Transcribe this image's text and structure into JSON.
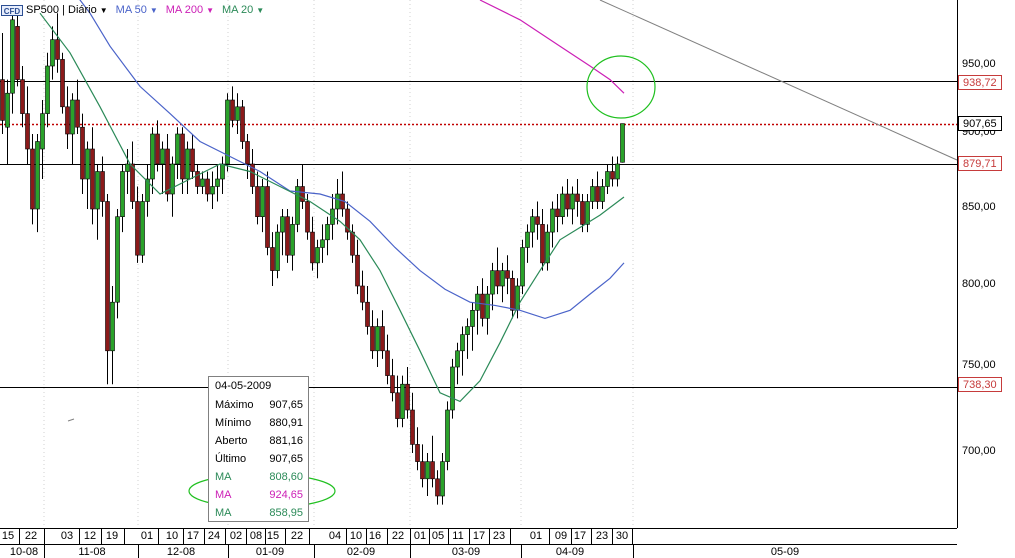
{
  "toolbar": {
    "badge": "CFD",
    "symbol": "SP500 | Diário",
    "indicators": [
      {
        "label": "MA 50",
        "color": "#4a63c9"
      },
      {
        "label": "MA 200",
        "color": "#cc1fb6"
      },
      {
        "label": "MA 20",
        "color": "#2b8a58"
      }
    ]
  },
  "tooltip": {
    "date": "04-05-2009",
    "rows": [
      {
        "k": "Máximo",
        "v": "907,65",
        "color": "#000000"
      },
      {
        "k": "Mínimo",
        "v": "880,91",
        "color": "#000000"
      },
      {
        "k": "Aberto",
        "v": "881,16",
        "color": "#000000"
      },
      {
        "k": "Último",
        "v": "907,65",
        "color": "#000000"
      },
      {
        "k": "MA",
        "v": "808,60",
        "color": "#2b8a58"
      },
      {
        "k": "MA",
        "v": "924,65",
        "color": "#cc1fb6"
      },
      {
        "k": "MA",
        "v": "858,95",
        "color": "#2b8a58"
      }
    ]
  },
  "chart_data": {
    "type": "candlestick",
    "x_months": [
      "10-08",
      "11-08",
      "12-08",
      "01-09",
      "02-09",
      "03-09",
      "04-09",
      "05-09"
    ],
    "x_day_ticks": [
      "15",
      "22",
      "03",
      "12",
      "19",
      "01",
      "10",
      "17",
      "24",
      "02",
      "08",
      "15",
      "22",
      "04",
      "10",
      "16",
      "22",
      "01",
      "05",
      "11",
      "17",
      "23",
      "01",
      "09",
      "17",
      "23",
      "30"
    ],
    "y_ticks": [
      "950,00",
      "900,00",
      "850,00",
      "800,00",
      "750,00",
      "700,00"
    ],
    "y_range": [
      650,
      1000
    ],
    "levels": [
      {
        "label": "938,72",
        "value": 938.72,
        "style": "solid",
        "color": "#000000",
        "badge": true
      },
      {
        "label": "907,65",
        "value": 907.65,
        "style": "dotted",
        "color": "#c00000",
        "badge": false
      },
      {
        "label": "879,71",
        "value": 879.71,
        "style": "solid",
        "color": "#000000",
        "badge": true
      },
      {
        "label": "738,30",
        "value": 738.3,
        "style": "solid",
        "color": "#000000",
        "badge": true
      }
    ]
  }
}
